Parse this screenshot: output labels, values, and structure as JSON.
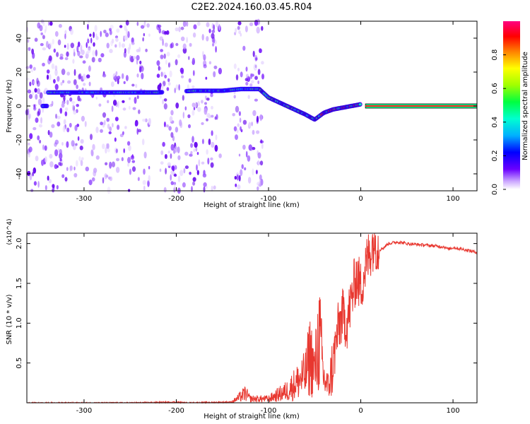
{
  "title": "C2E2.2024.160.03.45.R04",
  "chart_data": [
    {
      "type": "heatmap",
      "title": "C2E2.2024.160.03.45.R04",
      "xlabel": "Height of straight line (km)",
      "ylabel": "Frequency (Hz)",
      "xlim": [
        -362,
        126
      ],
      "ylim": [
        -50,
        50
      ],
      "x_ticks": [
        -300,
        -200,
        -100,
        0,
        100
      ],
      "y_ticks": [
        -40,
        -20,
        0,
        20,
        40
      ],
      "colorbar": {
        "label": "Normalized spectral amplitude",
        "range": [
          0,
          1
        ],
        "ticks": [
          0.0,
          0.2,
          0.4,
          0.6,
          0.8
        ],
        "tick_labels": [
          "0.0",
          "0.2",
          "0.4",
          "0.6",
          "0.8"
        ],
        "colormap": "rainbow (violet to magenta)"
      },
      "signal_track": {
        "description_points_x": [
          -340,
          -300,
          -220,
          -180,
          -150,
          -130,
          -110,
          -100,
          -80,
          -60,
          -50,
          -40,
          -30,
          -20,
          -10,
          0,
          20,
          126
        ],
        "description_points_y": [
          8,
          8,
          8,
          9,
          9,
          10,
          10,
          5,
          0,
          -5,
          -8,
          -4,
          -2,
          -1,
          0,
          1,
          0,
          0
        ]
      },
      "noise_gaps_x": [
        [
          -228,
          -220
        ],
        [
          -152,
          -138
        ],
        [
          -106,
          126
        ]
      ]
    },
    {
      "type": "line",
      "xlabel": "Height of straight line (km)",
      "ylabel": "SNR (10 * v/v)",
      "y_multiplier": "(x10^4)",
      "xlim": [
        -362,
        126
      ],
      "ylim": [
        0,
        2.13
      ],
      "x_ticks": [
        -300,
        -200,
        -100,
        0,
        100
      ],
      "y_ticks": [
        0.5,
        1.0,
        1.5,
        2.0
      ],
      "y_tick_labels": [
        "0.5",
        "1.0",
        "1.5",
        "2.0"
      ],
      "series": [
        {
          "color": "#e8372f",
          "x": [
            -362,
            -300,
            -250,
            -200,
            -190,
            -140,
            -130,
            -125,
            -120,
            -100,
            -80,
            -70,
            -60,
            -55,
            -50,
            -45,
            -40,
            -35,
            -30,
            -25,
            -20,
            -15,
            -10,
            -5,
            0,
            5,
            10,
            15,
            20,
            25,
            30,
            40,
            50,
            60,
            70,
            80,
            90,
            95,
            100,
            110,
            126
          ],
          "y": [
            0.0,
            0.0,
            0.0,
            0.01,
            0.0,
            0.01,
            0.08,
            0.12,
            0.05,
            0.05,
            0.15,
            0.25,
            0.35,
            0.6,
            0.4,
            0.85,
            0.3,
            0.2,
            0.5,
            0.9,
            1.1,
            1.0,
            1.3,
            1.6,
            1.45,
            1.7,
            1.9,
            2.05,
            1.92,
            1.95,
            2.0,
            2.02,
            2.0,
            1.99,
            1.98,
            1.97,
            1.96,
            1.93,
            1.95,
            1.93,
            1.89
          ]
        }
      ]
    }
  ]
}
